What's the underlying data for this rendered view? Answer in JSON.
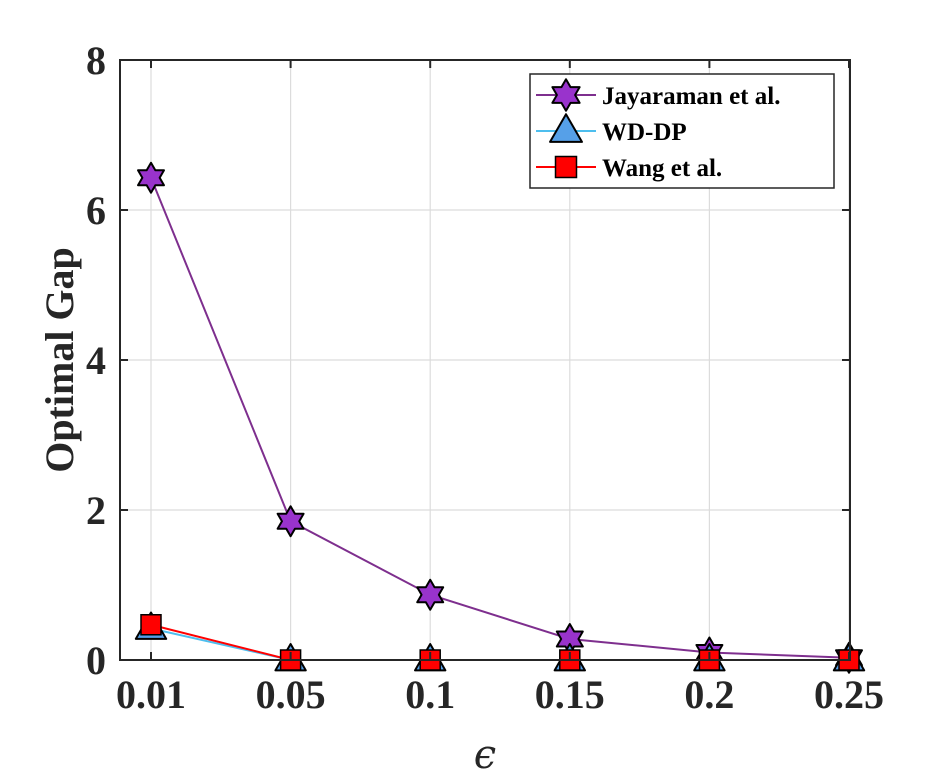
{
  "chart_data": {
    "type": "line",
    "categories": [
      "0.01",
      "0.05",
      "0.1",
      "0.15",
      "0.2",
      "0.25"
    ],
    "xlabel": "ϵ",
    "ylabel": "Optimal Gap",
    "ylim": [
      0,
      8
    ],
    "yticks": [
      "0",
      "2",
      "4",
      "6",
      "8"
    ],
    "grid": true,
    "legend_position": "top-right",
    "series": [
      {
        "name": "Jayaraman et al.",
        "color": "#7E2F8E",
        "marker_fill": "#9933CC",
        "marker": "hexagram",
        "values": [
          6.43,
          1.85,
          0.87,
          0.28,
          0.1,
          0.03
        ]
      },
      {
        "name": "WD-DP",
        "color": "#4DBEEE",
        "marker_fill": "#56A0E8",
        "marker": "triangle",
        "values": [
          0.42,
          0.0,
          0.0,
          0.0,
          0.0,
          0.0
        ]
      },
      {
        "name": "Wang et al.",
        "color": "#FF0000",
        "marker_fill": "#FF0000",
        "marker": "square",
        "values": [
          0.47,
          0.0,
          0.0,
          0.0,
          0.0,
          0.0
        ]
      }
    ]
  }
}
